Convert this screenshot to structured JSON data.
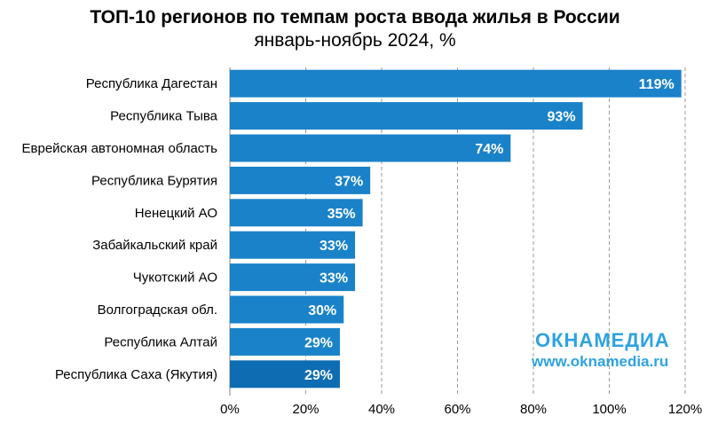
{
  "chart_data": {
    "type": "bar",
    "orientation": "horizontal",
    "title": "ТОП-10 регионов по темпам роста ввода жилья в России",
    "subtitle": "январь-ноябрь 2024, %",
    "categories": [
      "Республика Дагестан",
      "Республика Тыва",
      "Еврейская автономная область",
      "Республика Бурятия",
      "Ненецкий АО",
      "Забайкальский край",
      "Чукотский АО",
      "Волгоградская обл.",
      "Республика Алтай",
      "Республика Саха (Якутия)"
    ],
    "values": [
      119,
      93,
      74,
      37,
      35,
      33,
      33,
      30,
      29,
      29
    ],
    "data_labels": [
      "119%",
      "93%",
      "74%",
      "37%",
      "35%",
      "33%",
      "33%",
      "30%",
      "29%",
      "29%"
    ],
    "xlim": [
      0,
      120
    ],
    "xticks": [
      0,
      20,
      40,
      60,
      80,
      100,
      120
    ],
    "xtick_labels": [
      "0%",
      "20%",
      "40%",
      "60%",
      "80%",
      "100%",
      "120%"
    ],
    "grid": "vertical dashed",
    "colors": {
      "bar": "#1a82c9",
      "bar_dark": "#0e6cb3",
      "label": "#ffffff",
      "grid": "#9a9a9a"
    }
  },
  "watermark": {
    "title": "ОКНАМЕДИА",
    "url": "www.oknamedia.ru",
    "color": "#2ea3e0"
  }
}
